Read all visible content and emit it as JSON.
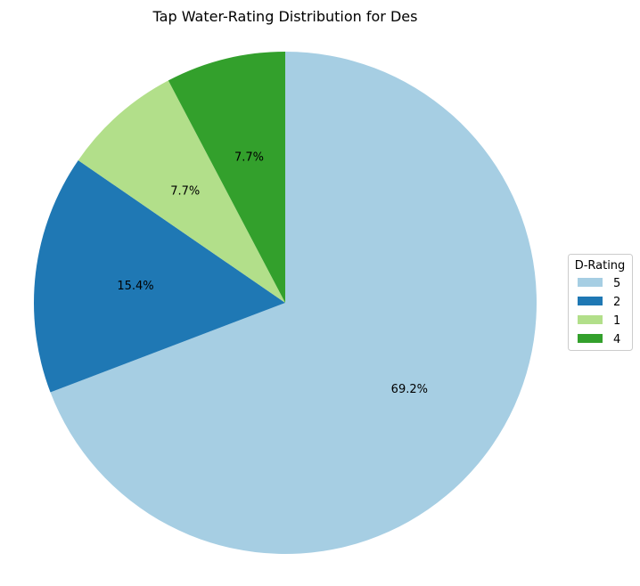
{
  "chart_data": {
    "type": "pie",
    "title": "Tap Water-Rating Distribution for Des",
    "legend_title": "D-Rating",
    "legend_position": "right",
    "start_angle_deg": 90,
    "direction": "clockwise",
    "slices": [
      {
        "label": "5",
        "value": 69.2,
        "pct_label": "69.2%",
        "color": "#a6cee3"
      },
      {
        "label": "2",
        "value": 15.4,
        "pct_label": "15.4%",
        "color": "#1f78b4"
      },
      {
        "label": "1",
        "value": 7.7,
        "pct_label": "7.7%",
        "color": "#b2df8a"
      },
      {
        "label": "4",
        "value": 7.7,
        "pct_label": "7.7%",
        "color": "#33a02c"
      }
    ]
  }
}
